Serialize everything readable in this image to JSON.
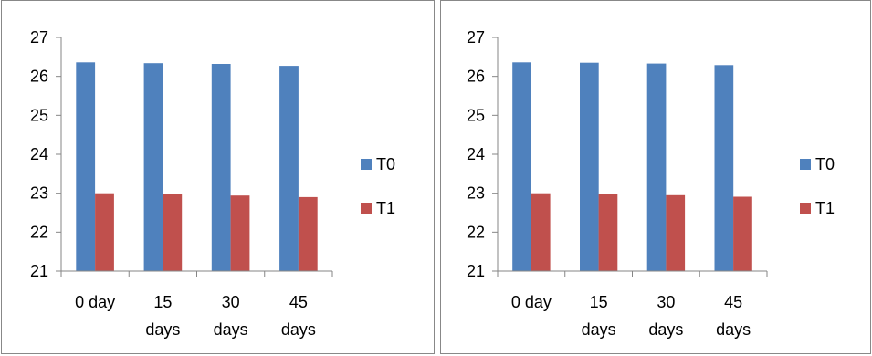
{
  "chart_data": [
    {
      "type": "bar",
      "categories": [
        [
          "0 day"
        ],
        [
          "15",
          "days"
        ],
        [
          "30",
          "days"
        ],
        [
          "45",
          "days"
        ]
      ],
      "series": [
        {
          "name": "T0",
          "color": "#4f81bd",
          "values": [
            26.36,
            26.34,
            26.32,
            26.27
          ]
        },
        {
          "name": "T1",
          "color": "#c0504d",
          "values": [
            23.0,
            22.97,
            22.94,
            22.9
          ]
        }
      ],
      "ylim": [
        21,
        27
      ],
      "yticks": [
        "21",
        "22",
        "23",
        "24",
        "25",
        "26",
        "27"
      ],
      "grid": false,
      "legend": "right"
    },
    {
      "type": "bar",
      "categories": [
        [
          "0 day"
        ],
        [
          "15",
          "days"
        ],
        [
          "30",
          "days"
        ],
        [
          "45",
          "days"
        ]
      ],
      "series": [
        {
          "name": "T0",
          "color": "#4f81bd",
          "values": [
            26.36,
            26.35,
            26.33,
            26.29
          ]
        },
        {
          "name": "T1",
          "color": "#c0504d",
          "values": [
            23.0,
            22.98,
            22.95,
            22.91
          ]
        }
      ],
      "ylim": [
        21,
        27
      ],
      "yticks": [
        "21",
        "22",
        "23",
        "24",
        "25",
        "26",
        "27"
      ],
      "grid": false,
      "legend": "right"
    }
  ]
}
